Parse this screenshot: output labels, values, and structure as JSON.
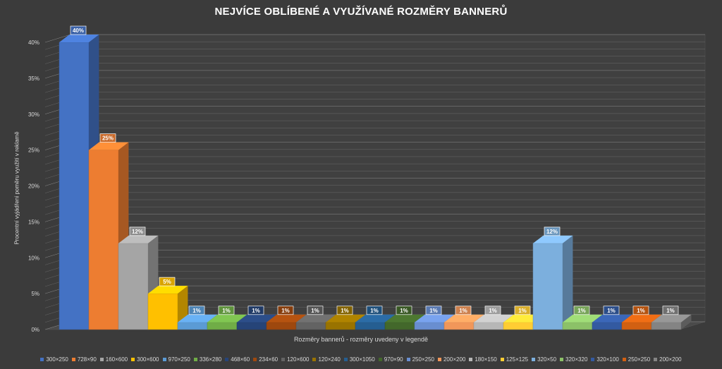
{
  "chart_data": {
    "type": "bar",
    "title": "NEJVÍCE OBLÍBENÉ A VYUŽÍVANÉ ROZMĚRY BANNERŮ",
    "xlabel": "Rozměry bannerů - rozměry uvedeny v legendě",
    "ylabel": "Procentní vyjádření poměru využití v reklamě",
    "ylim": [
      0,
      40
    ],
    "yticks": [
      "0%",
      "5%",
      "10%",
      "15%",
      "20%",
      "25%",
      "30%",
      "35%",
      "40%"
    ],
    "grid": true,
    "legend_position": "bottom",
    "categories": [
      "300×250",
      "728×90",
      "160×600",
      "300×600",
      "970×250",
      "336×280",
      "468×60",
      "234×60",
      "120×600",
      "120×240",
      "300×1050",
      "970×90",
      "250×250",
      "200×200",
      "180×150",
      "125×125",
      "320×50",
      "320×320",
      "320×100",
      "250×250",
      "200×200"
    ],
    "values": [
      40,
      25,
      12,
      5,
      1,
      1,
      1,
      1,
      1,
      1,
      1,
      1,
      1,
      1,
      1,
      1,
      12,
      1,
      1,
      1,
      1
    ],
    "data_labels": [
      "40%",
      "25%",
      "12%",
      "5%",
      "1%",
      "1%",
      "1%",
      "1%",
      "1%",
      "1%",
      "1%",
      "1%",
      "1%",
      "1%",
      "1%",
      "1%",
      "12%",
      "1%",
      "1%",
      "1%",
      "1%"
    ],
    "colors": [
      "#4472c4",
      "#ed7d31",
      "#a5a5a5",
      "#ffc000",
      "#5b9bd5",
      "#70ad47",
      "#264478",
      "#9e480e",
      "#636363",
      "#997300",
      "#255e91",
      "#43682b",
      "#698ed0",
      "#f1975a",
      "#b7b7b7",
      "#ffcd33",
      "#7cafdd",
      "#8cc168",
      "#335aa1",
      "#d26012",
      "#848484"
    ]
  }
}
